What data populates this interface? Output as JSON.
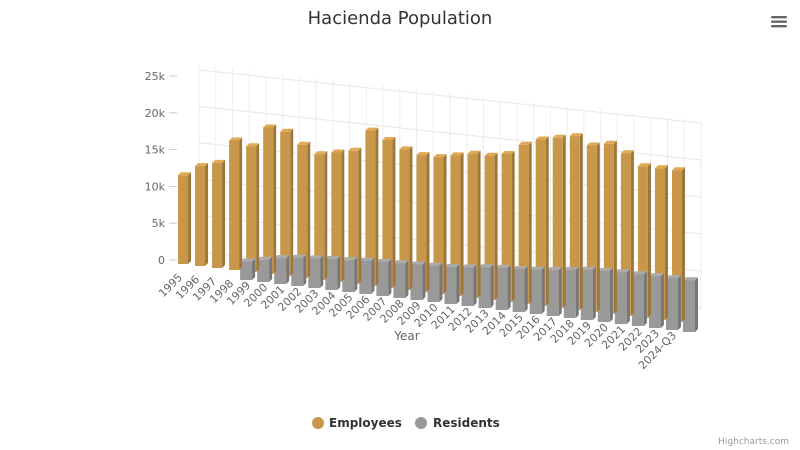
{
  "chart_data": {
    "type": "bar",
    "title": "Hacienda Population",
    "xlabel": "Year",
    "ylabel": "",
    "ylim": [
      0,
      25000
    ],
    "yticks": [
      "0",
      "5k",
      "10k",
      "15k",
      "20k",
      "25k"
    ],
    "categories": [
      "1995",
      "1996",
      "1997",
      "1998",
      "1999",
      "2000",
      "2001",
      "2002",
      "2003",
      "2004",
      "2005",
      "2006",
      "2007",
      "2008",
      "2009",
      "2010",
      "2011",
      "2012",
      "2013",
      "2014",
      "2015",
      "2016",
      "2017",
      "2018",
      "2019",
      "2020",
      "2021",
      "2022",
      "2023",
      "2024-Q3"
    ],
    "series": [
      {
        "name": "Employees",
        "color": "#c9974a",
        "values": [
          12000,
          13500,
          14200,
          17500,
          17000,
          19800,
          19500,
          18000,
          17000,
          17500,
          18000,
          21000,
          20000,
          19000,
          18500,
          18500,
          19000,
          19500,
          19500,
          20000,
          21500,
          22500,
          23000,
          23500,
          22500,
          23000,
          22000,
          20500,
          20500,
          20500
        ]
      },
      {
        "name": "Residents",
        "color": "#999999",
        "values": [
          0,
          0,
          0,
          2500,
          3000,
          3500,
          3800,
          4000,
          4200,
          4300,
          4500,
          4600,
          4700,
          4800,
          4900,
          5000,
          5200,
          5500,
          5700,
          5800,
          6000,
          6200,
          6500,
          6800,
          6900,
          7000,
          7000,
          7000,
          7000,
          7000
        ]
      }
    ],
    "legend_position": "bottom-center",
    "grid": true
  },
  "credits": "Highcharts.com",
  "menu_icon": "hamburger-menu-icon"
}
